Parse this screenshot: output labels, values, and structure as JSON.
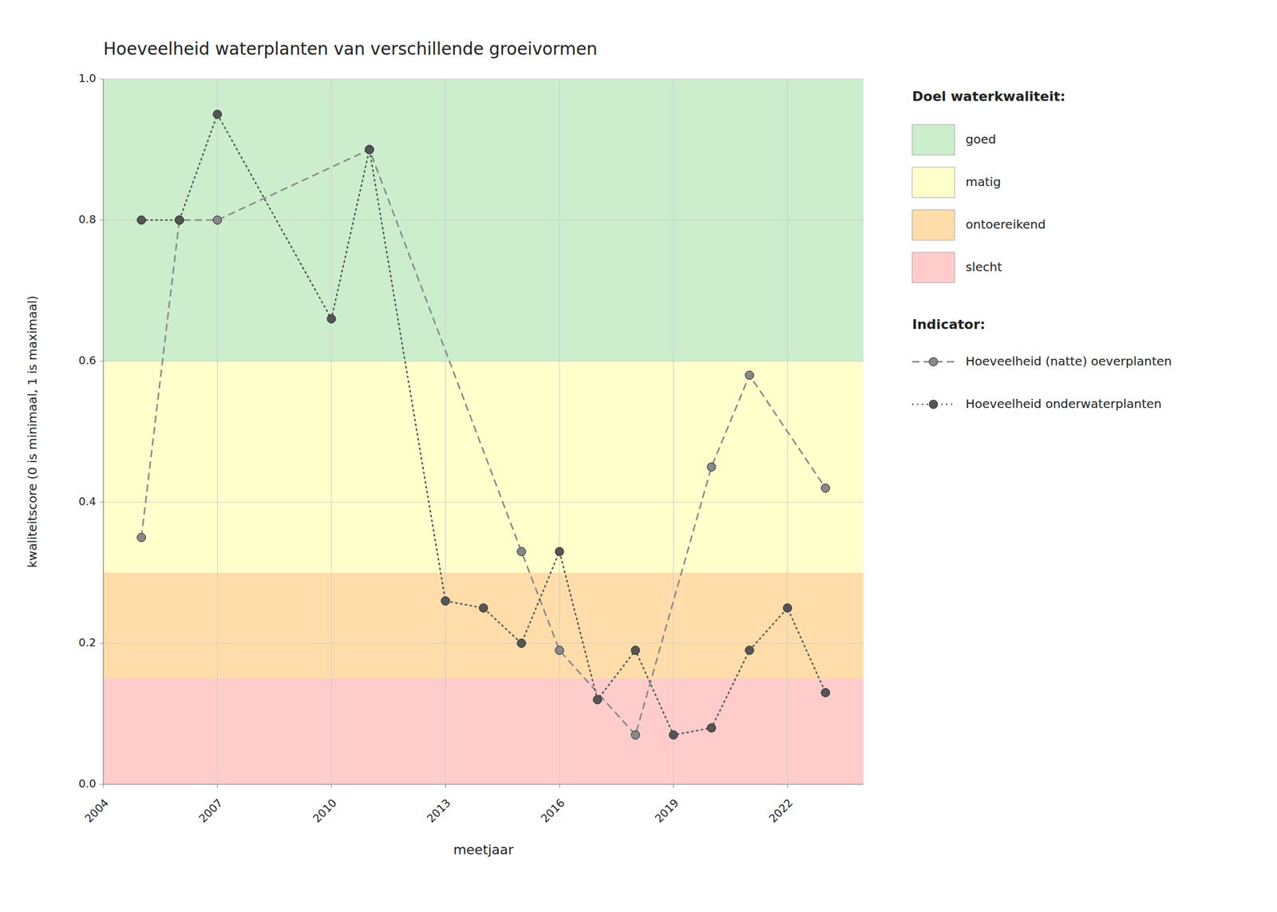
{
  "chart_data": {
    "type": "line",
    "title": "Hoeveelheid waterplanten van verschillende groeivormen",
    "x_label": "meetjaar",
    "y_label": "kwaliteitscore (0 is minimaal, 1 is maximaal)",
    "xlim": [
      2004,
      2024
    ],
    "ylim": [
      0.0,
      1.0
    ],
    "xticks": [
      2004,
      2007,
      2010,
      2013,
      2016,
      2019,
      2022
    ],
    "yticks": [
      {
        "value": 0.0,
        "label": "0.0"
      },
      0.2,
      0.4,
      0.6,
      0.8,
      {
        "value": 1.0,
        "label": "1.0"
      }
    ],
    "grid": true,
    "legend": "right",
    "band_legend_title": "Doel waterkwaliteit:",
    "series_legend_title": "Indicator:",
    "bands": [
      {
        "label": "goed",
        "ymin": 0.6,
        "ymax": 1.0,
        "color": "#CCEECC"
      },
      {
        "label": "matig",
        "ymin": 0.3,
        "ymax": 0.6,
        "color": "#FFFFCC"
      },
      {
        "label": "ontoereikend",
        "ymin": 0.15,
        "ymax": 0.3,
        "color": "#FFDDAA"
      },
      {
        "label": "slecht",
        "ymin": 0.0,
        "ymax": 0.15,
        "color": "#FFCCCC"
      }
    ],
    "series": [
      {
        "name": "Hoeveelheid (natte) oeverplanten",
        "color": "#888888",
        "line_style": "dashed",
        "marker": "circle",
        "x": [
          2005,
          2006,
          2007,
          2011,
          2015,
          2016,
          2018,
          2020,
          2021,
          2023
        ],
        "values": [
          0.35,
          0.8,
          0.8,
          0.9,
          0.33,
          0.19,
          0.07,
          0.45,
          0.58,
          0.42
        ]
      },
      {
        "name": "Hoeveelheid onderwaterplanten",
        "color": "#555555",
        "line_style": "dotted",
        "marker": "circle",
        "x": [
          2005,
          2006,
          2007,
          2010,
          2011,
          2013,
          2014,
          2015,
          2016,
          2017,
          2018,
          2019,
          2020,
          2021,
          2022,
          2023
        ],
        "values": [
          0.8,
          0.8,
          0.95,
          0.66,
          0.9,
          0.26,
          0.25,
          0.2,
          0.33,
          0.12,
          0.19,
          0.07,
          0.08,
          0.19,
          0.25,
          0.13
        ]
      }
    ]
  }
}
